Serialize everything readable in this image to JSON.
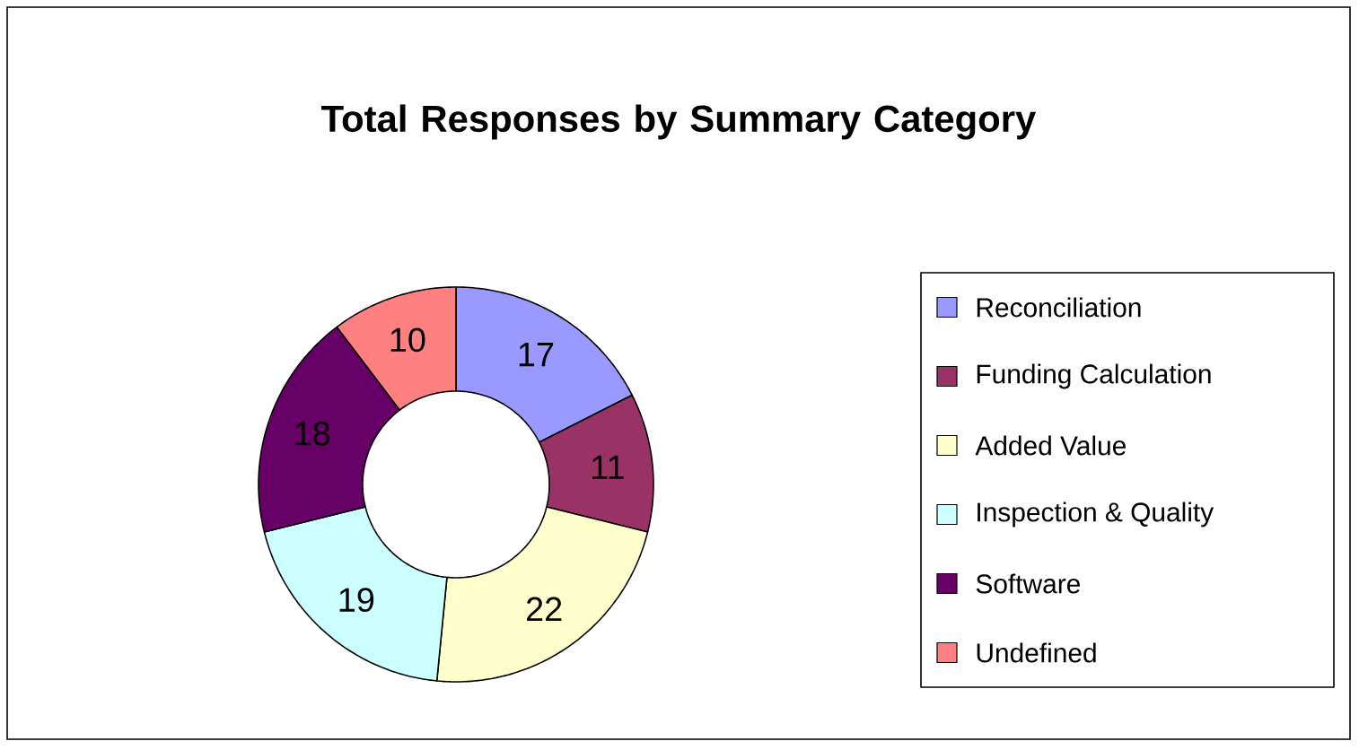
{
  "chart_data": {
    "type": "donut",
    "title": "Total Responses by Summary Category",
    "categories": [
      "Reconciliation",
      "Funding Calculation",
      "Added Value",
      "Inspection & Quality",
      "Software",
      "Undefined"
    ],
    "values": [
      17,
      11,
      22,
      19,
      18,
      10
    ],
    "colors": [
      "#9999ff",
      "#993366",
      "#ffffcc",
      "#ccffff",
      "#660066",
      "#ff8080"
    ],
    "data_labels": true,
    "legend": "right"
  }
}
